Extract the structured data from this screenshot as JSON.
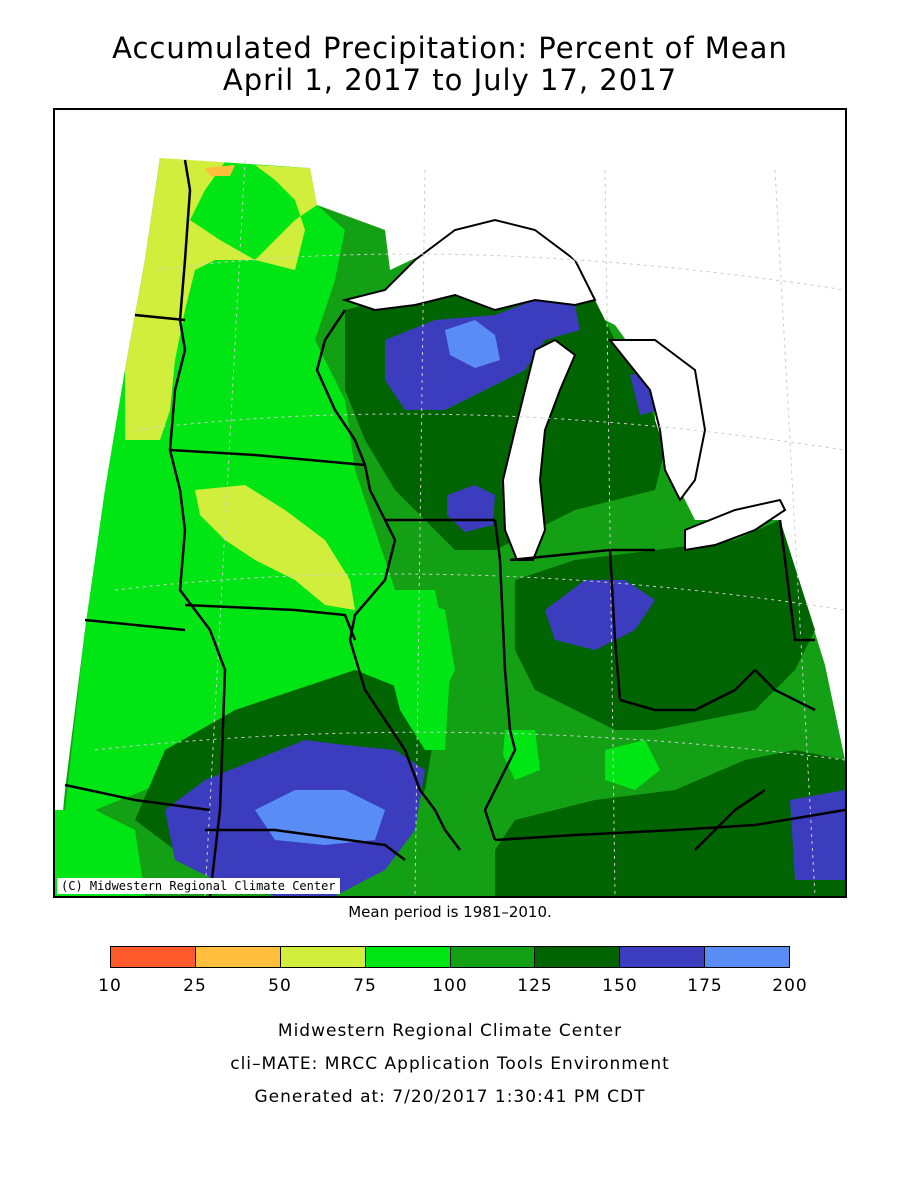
{
  "title": {
    "line1": "Accumulated Precipitation: Percent of Mean",
    "line2": "April 1, 2017 to July 17, 2017"
  },
  "map": {
    "copyright": "(C) Midwestern Regional Climate Center"
  },
  "note": "Mean period is 1981–2010.",
  "legend": {
    "ticks": [
      "10",
      "25",
      "50",
      "75",
      "100",
      "125",
      "150",
      "175",
      "200"
    ],
    "colors": [
      "#ff5a2b",
      "#ffbe3c",
      "#d2ee3c",
      "#00e614",
      "#14a014",
      "#006400",
      "#3c3cbe",
      "#5a8cf6"
    ]
  },
  "footer": {
    "line1": "Midwestern Regional Climate Center",
    "line2": "cli–MATE: MRCC Application Tools Environment",
    "line3": "Generated at: 7/20/2017 1:30:41 PM CDT"
  }
}
